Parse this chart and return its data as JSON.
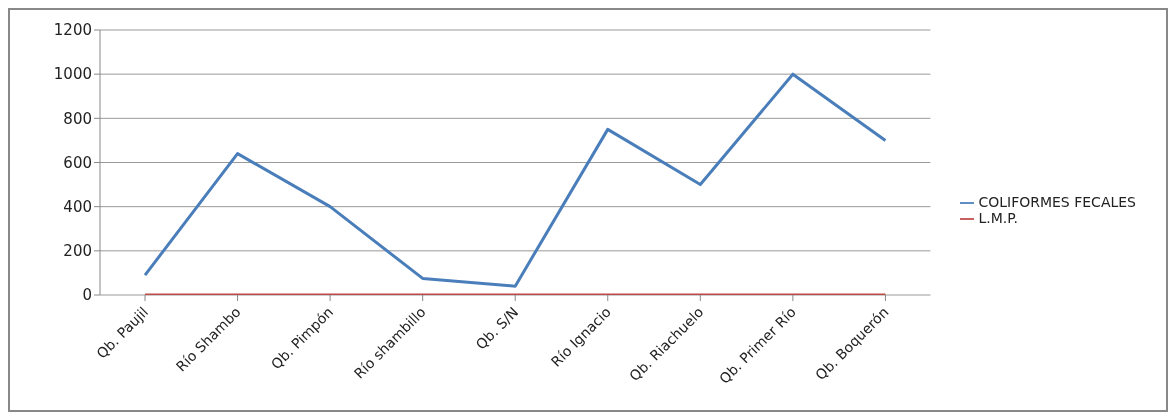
{
  "chart_data": {
    "type": "line",
    "categories": [
      "Qb. Paujil",
      "Río Shambo",
      "Qb. Pimpón",
      "Río shambillo",
      "Qb. S/N",
      "Río Ignacio",
      "Qb. Riachuelo",
      "Qb. Primer Río",
      "Qb. Boquerón"
    ],
    "series": [
      {
        "name": "COLIFORMES FECALES",
        "color": "#4a7ebb",
        "values": [
          90,
          640,
          400,
          75,
          40,
          750,
          500,
          1000,
          700
        ]
      },
      {
        "name": "L.M.P.",
        "color": "#be4b48",
        "values": [
          0,
          0,
          0,
          0,
          0,
          0,
          0,
          0,
          0
        ]
      }
    ],
    "ylim": [
      0,
      1200
    ],
    "yticks": [
      0,
      200,
      400,
      600,
      800,
      1000,
      1200
    ],
    "grid": "y",
    "legend": "right",
    "marker": "none",
    "line_style": "solid"
  }
}
